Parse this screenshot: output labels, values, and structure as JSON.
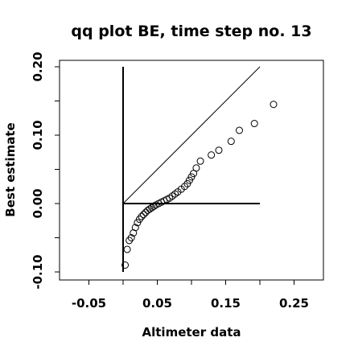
{
  "chart_data": {
    "type": "scatter",
    "title": "qq plot BE, time step no. 13",
    "xlabel": "Altimeter data",
    "ylabel": "Best estimate",
    "xlim": [
      -0.1,
      0.3
    ],
    "ylim": [
      -0.105,
      0.205
    ],
    "x_ticks": [
      -0.05,
      0.05,
      0.15,
      0.25
    ],
    "x_tick_labels": [
      "-0.05",
      "0.05",
      "0.15",
      "0.25"
    ],
    "x_minor_ticks": [
      0.0,
      0.1,
      0.2
    ],
    "y_ticks": [
      -0.1,
      0.0,
      0.1,
      0.2
    ],
    "y_tick_labels": [
      "-0.10",
      "0.00",
      "0.10",
      "0.20"
    ],
    "y_minor_ticks": [
      -0.05,
      0.05,
      0.15
    ],
    "grid": false,
    "marker": "open-circle",
    "reference_line": {
      "x": [
        0.0,
        0.2
      ],
      "y": [
        0.0,
        0.2
      ]
    },
    "axis_lines": {
      "vertical": {
        "x": 0.0,
        "y": [
          -0.1,
          0.2
        ]
      },
      "horizontal": {
        "y": 0.0,
        "x": [
          0.0,
          0.2
        ]
      }
    },
    "points": {
      "x": [
        0.003,
        0.006,
        0.009,
        0.012,
        0.015,
        0.018,
        0.021,
        0.024,
        0.027,
        0.03,
        0.033,
        0.036,
        0.039,
        0.042,
        0.045,
        0.048,
        0.052,
        0.056,
        0.06,
        0.064,
        0.068,
        0.072,
        0.076,
        0.08,
        0.085,
        0.09,
        0.094,
        0.097,
        0.1,
        0.103,
        0.107,
        0.113,
        0.129,
        0.14,
        0.158,
        0.17,
        0.192,
        0.22
      ],
      "y": [
        -0.09,
        -0.067,
        -0.054,
        -0.05,
        -0.043,
        -0.035,
        -0.028,
        -0.023,
        -0.019,
        -0.016,
        -0.013,
        -0.01,
        -0.008,
        -0.006,
        -0.004,
        -0.002,
        0.0,
        0.002,
        0.004,
        0.006,
        0.008,
        0.011,
        0.014,
        0.017,
        0.021,
        0.025,
        0.029,
        0.034,
        0.039,
        0.044,
        0.052,
        0.062,
        0.071,
        0.078,
        0.091,
        0.107,
        0.117,
        0.145
      ]
    }
  }
}
